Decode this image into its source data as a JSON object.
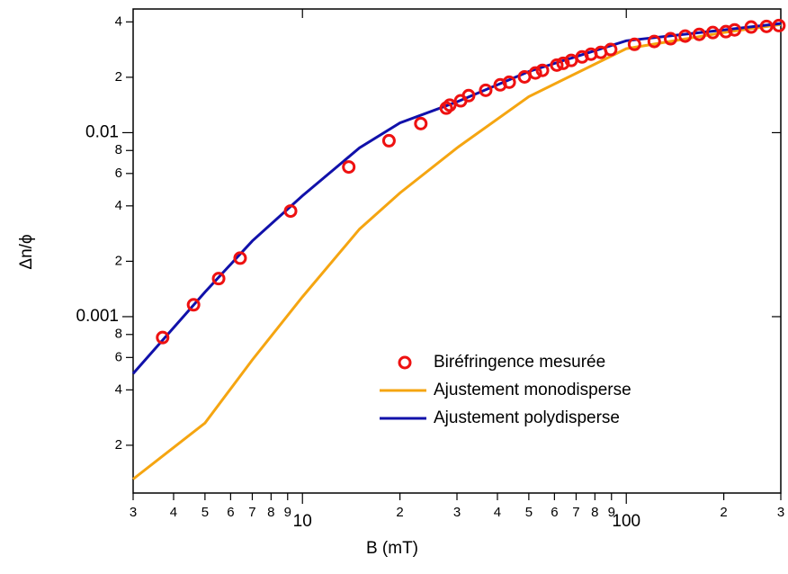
{
  "chart_data": {
    "type": "scatter",
    "xlabel": "B (mT)",
    "ylabel": "Δn/ϕ",
    "xlog": true,
    "ylog": true,
    "legend": "lower right",
    "xlim": [
      3,
      300
    ],
    "ylim": [
      0.00011,
      0.047
    ],
    "xticks": [
      3,
      4,
      5,
      6,
      7,
      8,
      9,
      10,
      {
        "value": 20,
        "label": "2"
      },
      {
        "value": 30,
        "label": "3"
      },
      {
        "value": 40,
        "label": "4"
      },
      {
        "value": 50,
        "label": "5"
      },
      {
        "value": 60,
        "label": "6"
      },
      {
        "value": 70,
        "label": "7"
      },
      {
        "value": 80,
        "label": "8"
      },
      {
        "value": 90,
        "label": "9"
      },
      100,
      {
        "value": 200,
        "label": "2"
      },
      {
        "value": 300,
        "label": "3"
      }
    ],
    "yticks": [
      {
        "value": 0.0002,
        "label": "2"
      },
      {
        "value": 0.0004,
        "label": "4"
      },
      {
        "value": 0.0006,
        "label": "6"
      },
      {
        "value": 0.0008,
        "label": "8"
      },
      0.001,
      {
        "value": 0.002,
        "label": "2"
      },
      {
        "value": 0.004,
        "label": "4"
      },
      {
        "value": 0.006,
        "label": "6"
      },
      {
        "value": 0.008,
        "label": "8"
      },
      0.01,
      {
        "value": 0.02,
        "label": "2"
      },
      {
        "value": 0.04,
        "label": "4"
      }
    ],
    "series": [
      {
        "name": "Biréfringence mesurée",
        "color": "#ee1111",
        "marker": "circle",
        "x": [
          3.7,
          4.61,
          5.51,
          6.42,
          9.19,
          13.9,
          18.5,
          23.2,
          27.8,
          28.5,
          30.8,
          32.6,
          36.8,
          40.8,
          43.5,
          48.5,
          52.4,
          55.1,
          61.0,
          63.8,
          67.6,
          73.0,
          77.8,
          83.4,
          89.5,
          106,
          122,
          137,
          152,
          168,
          185,
          203,
          216,
          243,
          271,
          296
        ],
        "values": [
          0.00077,
          0.00116,
          0.00161,
          0.00208,
          0.00375,
          0.00651,
          0.00904,
          0.0112,
          0.0136,
          0.0141,
          0.0149,
          0.0159,
          0.017,
          0.0182,
          0.0188,
          0.0201,
          0.0211,
          0.0218,
          0.0233,
          0.0238,
          0.0247,
          0.0258,
          0.0267,
          0.0273,
          0.0283,
          0.0302,
          0.0313,
          0.0324,
          0.0335,
          0.0342,
          0.035,
          0.0354,
          0.0362,
          0.0375,
          0.0378,
          0.0382
        ]
      },
      {
        "name": "Ajustement monodisperse",
        "color": "#f5a511",
        "marker": "line",
        "x": [
          3,
          5,
          7,
          10,
          15,
          20,
          30,
          50,
          100,
          200,
          300
        ],
        "values": [
          0.000131,
          0.000264,
          0.000582,
          0.00128,
          0.00299,
          0.0047,
          0.00826,
          0.0157,
          0.0286,
          0.035,
          0.0387
        ]
      },
      {
        "name": "Ajustement polydisperse",
        "color": "#1111aa",
        "marker": "line",
        "x": [
          3,
          5,
          7,
          10,
          15,
          20,
          30,
          50,
          100,
          200,
          300
        ],
        "values": [
          0.00049,
          0.00136,
          0.00258,
          0.00454,
          0.00826,
          0.0113,
          0.0147,
          0.0215,
          0.0316,
          0.0362,
          0.0392
        ]
      }
    ]
  }
}
